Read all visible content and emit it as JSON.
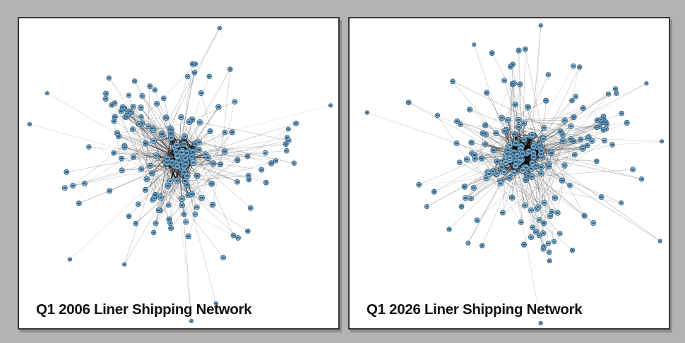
{
  "figure": {
    "background_color": "#b3b3b3",
    "panel_background": "#ffffff",
    "panel_border_color": "#383838",
    "panel_shadow_color": "#8e8e8e",
    "title_color": "#111111"
  },
  "chart_data": [
    {
      "type": "network",
      "title": "Q1 2006 Liner Shipping Network",
      "layout": "spring",
      "node_count": 188,
      "edge_count": 560,
      "node_fill_colors": [
        "#74a9cf",
        "#7fb2d6",
        "#8abddc"
      ],
      "node_stroke_color": "#2f5b78",
      "node_label_color": "rgba(13,30,48,0.6)",
      "edge_color": "#000000",
      "seed": 2006,
      "clusters": [
        {
          "center": [
            0.505,
            0.455
          ],
          "spread": 0.34,
          "count": 140
        },
        {
          "center": [
            0.36,
            0.3
          ],
          "spread": 0.1,
          "count": 24
        },
        {
          "center": [
            0.47,
            0.62
          ],
          "spread": 0.1,
          "count": 16
        }
      ],
      "outliers": [
        [
          0.033,
          0.342
        ],
        [
          0.088,
          0.242
        ],
        [
          0.159,
          0.778
        ],
        [
          0.33,
          0.794
        ],
        [
          0.976,
          0.281
        ],
        [
          0.54,
          0.977
        ],
        [
          0.628,
          0.032
        ],
        [
          0.617,
          0.92
        ]
      ],
      "core_extra_edges": 230
    },
    {
      "type": "network",
      "title": "Q1 2026 Liner Shipping Network",
      "layout": "spring",
      "node_count": 214,
      "edge_count": 760,
      "node_fill_colors": [
        "#74a9cf",
        "#7fb2d6",
        "#8abddc"
      ],
      "node_stroke_color": "#2f5b78",
      "node_label_color": "rgba(13,30,48,0.6)",
      "edge_color": "#000000",
      "seed": 2026,
      "clusters": [
        {
          "center": [
            0.535,
            0.44
          ],
          "spread": 0.36,
          "count": 165
        },
        {
          "center": [
            0.76,
            0.33
          ],
          "spread": 0.1,
          "count": 22
        },
        {
          "center": [
            0.61,
            0.71
          ],
          "spread": 0.09,
          "count": 20
        }
      ],
      "outliers": [
        [
          0.055,
          0.304
        ],
        [
          0.978,
          0.397
        ],
        [
          0.973,
          0.719
        ],
        [
          0.599,
          0.023
        ],
        [
          0.599,
          0.984
        ],
        [
          0.39,
          0.085
        ],
        [
          0.93,
          0.21
        ]
      ],
      "core_extra_edges": 320
    }
  ]
}
